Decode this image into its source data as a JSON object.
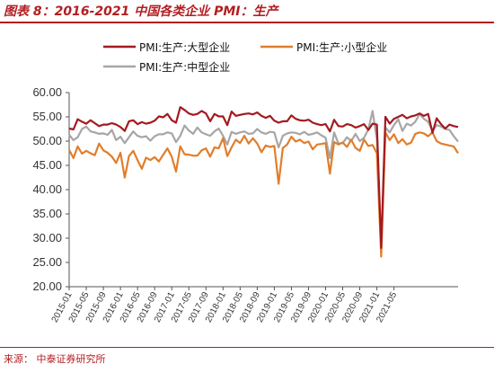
{
  "header": {
    "title": "图表 8：2016-2021 中国各类企业 PMI：生产"
  },
  "footer": {
    "source": "来源：  中泰证券研究所"
  },
  "colors": {
    "accent": "#b31e23",
    "large": "#a31a1f",
    "small": "#e07e2c",
    "medium": "#a6a6a6"
  },
  "chart_data": {
    "type": "line",
    "title": "",
    "xlabel": "",
    "ylabel": "",
    "ylim": [
      20,
      60
    ],
    "yticks": [
      "60.00",
      "55.00",
      "50.00",
      "45.00",
      "40.00",
      "35.00",
      "30.00",
      "25.00",
      "20.00"
    ],
    "grid": false,
    "legend_position": "top",
    "x_start": "2015-01",
    "x_tick_labels": [
      "2015-01",
      "2015-05",
      "2015-09",
      "2016-01",
      "2016-05",
      "2016-09",
      "2017-01",
      "2017-05",
      "2017-09",
      "2018-01",
      "2018-05",
      "2018-09",
      "2019-01",
      "2019-05",
      "2019-09",
      "2020-01",
      "2020-05",
      "2020-09",
      "2021-01",
      "2021-05"
    ],
    "series": [
      {
        "name": "PMI:生产:大型企业",
        "color": "#a31a1f",
        "values": [
          52.6,
          52.4,
          54.5,
          54.0,
          53.6,
          54.3,
          53.7,
          53.1,
          53.4,
          53.4,
          53.7,
          53.4,
          52.9,
          52.1,
          54.1,
          54.3,
          53.5,
          53.9,
          53.6,
          53.8,
          54.2,
          55.1,
          54.9,
          55.6,
          54.3,
          53.8,
          57.0,
          56.4,
          55.7,
          55.4,
          55.6,
          56.2,
          55.7,
          54.1,
          55.6,
          55.1,
          55.1,
          53.3,
          56.1,
          55.2,
          55.4,
          55.6,
          55.7,
          55.5,
          55.9,
          55.2,
          54.8,
          55.2,
          54.2,
          53.8,
          54.1,
          54.1,
          55.3,
          54.6,
          54.3,
          54.2,
          54.4,
          53.8,
          53.5,
          53.3,
          53.5,
          52.0,
          54.4,
          53.1,
          53.0,
          53.5,
          53.3,
          52.8,
          53.1,
          53.5,
          52.3,
          53.6,
          53.4,
          28.0,
          55.0,
          53.6,
          54.6,
          55.0,
          55.4,
          54.7,
          55.1,
          55.3,
          55.7,
          55.2,
          55.6,
          51.7,
          54.7,
          53.5,
          52.6,
          53.4,
          53.1,
          52.9
        ]
      },
      {
        "name": "PMI:生产:小型企业",
        "color": "#e07e2c",
        "values": [
          48.2,
          46.5,
          48.9,
          47.4,
          48.0,
          47.5,
          47.1,
          49.5,
          48.1,
          47.6,
          46.8,
          45.5,
          47.6,
          42.5,
          46.9,
          48.0,
          46.1,
          44.3,
          46.6,
          46.1,
          46.7,
          45.8,
          47.2,
          48.5,
          46.8,
          43.7,
          48.9,
          47.3,
          47.2,
          47.0,
          47.0,
          48.1,
          48.5,
          46.8,
          48.7,
          48.5,
          50.6,
          46.9,
          48.7,
          50.3,
          49.6,
          51.1,
          49.5,
          50.6,
          49.5,
          47.7,
          49.1,
          48.8,
          49.0,
          41.2,
          48.6,
          49.3,
          50.9,
          49.9,
          50.3,
          49.6,
          49.9,
          48.3,
          49.3,
          49.4,
          49.6,
          43.3,
          49.8,
          49.3,
          49.7,
          48.8,
          50.3,
          48.6,
          48.0,
          50.3,
          49.0,
          49.2,
          47.5,
          26.2,
          51.8,
          50.2,
          51.4,
          49.6,
          50.4,
          49.3,
          49.7,
          51.5,
          51.8,
          51.6,
          51.0,
          51.8,
          50.0,
          49.5,
          49.3,
          49.1,
          48.9,
          47.5
        ]
      },
      {
        "name": "PMI:生产:中型企业",
        "color": "#a6a6a6",
        "values": [
          51.3,
          50.2,
          50.8,
          52.5,
          53.0,
          52.0,
          51.8,
          51.5,
          51.6,
          51.3,
          52.3,
          50.2,
          50.9,
          49.6,
          50.8,
          52.0,
          51.1,
          50.8,
          51.0,
          50.1,
          51.0,
          51.4,
          51.4,
          51.8,
          51.6,
          49.8,
          51.1,
          53.2,
          52.2,
          51.5,
          52.8,
          51.8,
          51.4,
          51.1,
          52.0,
          52.6,
          51.1,
          49.3,
          51.9,
          51.5,
          51.8,
          52.0,
          51.5,
          51.6,
          52.5,
          51.8,
          51.5,
          51.9,
          51.8,
          48.7,
          51.1,
          51.6,
          51.8,
          51.7,
          51.4,
          51.9,
          51.3,
          51.5,
          51.8,
          51.2,
          50.7,
          46.5,
          51.8,
          49.5,
          49.6,
          50.8,
          50.0,
          51.5,
          50.0,
          50.7,
          52.4,
          56.2,
          50.4,
          27.5,
          52.8,
          51.8,
          53.3,
          54.5,
          52.1,
          53.6,
          53.2,
          54.0,
          55.6,
          54.6,
          54.0,
          52.1,
          53.3,
          53.0,
          52.5,
          52.3,
          51.0,
          49.9
        ]
      }
    ]
  }
}
